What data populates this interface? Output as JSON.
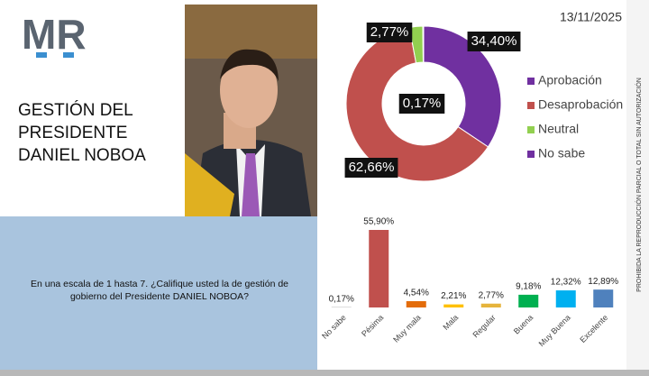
{
  "header": {
    "logo": "MR",
    "date": "13/11/2025",
    "title": "GESTIÓN DEL\nPRESIDENTE\nDANIEL NOBOA"
  },
  "question": "En una escala de 1 hasta 7. ¿Califique usted la de gestión de gobierno del Presidente DANIEL NOBOA?",
  "disclaimer": "PROHIBIDA LA REPRODUCCIÓN PARCIAL O TOTAL SIN AUTORIZACIÓN",
  "chart_data": [
    {
      "type": "donut",
      "categories": [
        "Aprobación",
        "Desaprobación",
        "Neutral",
        "No sabe"
      ],
      "values": [
        34.4,
        62.66,
        2.77,
        0.17
      ],
      "value_labels": [
        "34,40%",
        "62,66%",
        "2,77%",
        "0,17%"
      ],
      "colors": [
        "#7030a0",
        "#c0504d",
        "#92d050",
        "#7030a0"
      ],
      "legend": "right"
    },
    {
      "type": "bar",
      "categories": [
        "No sabe",
        "Pésima",
        "Muy mala",
        "Mala",
        "Regular",
        "Buena",
        "Muy Buena",
        "Excelente"
      ],
      "values": [
        0.17,
        55.9,
        4.54,
        2.21,
        2.77,
        9.18,
        12.32,
        12.89
      ],
      "value_labels": [
        "0,17%",
        "55,90%",
        "4,54%",
        "2,21%",
        "2,77%",
        "9,18%",
        "12,32%",
        "12,89%"
      ],
      "colors": [
        "#7f7f7f",
        "#c0504d",
        "#e36c0a",
        "#ffc000",
        "#e6b43c",
        "#00b050",
        "#00b0f0",
        "#4f81bd"
      ]
    }
  ]
}
